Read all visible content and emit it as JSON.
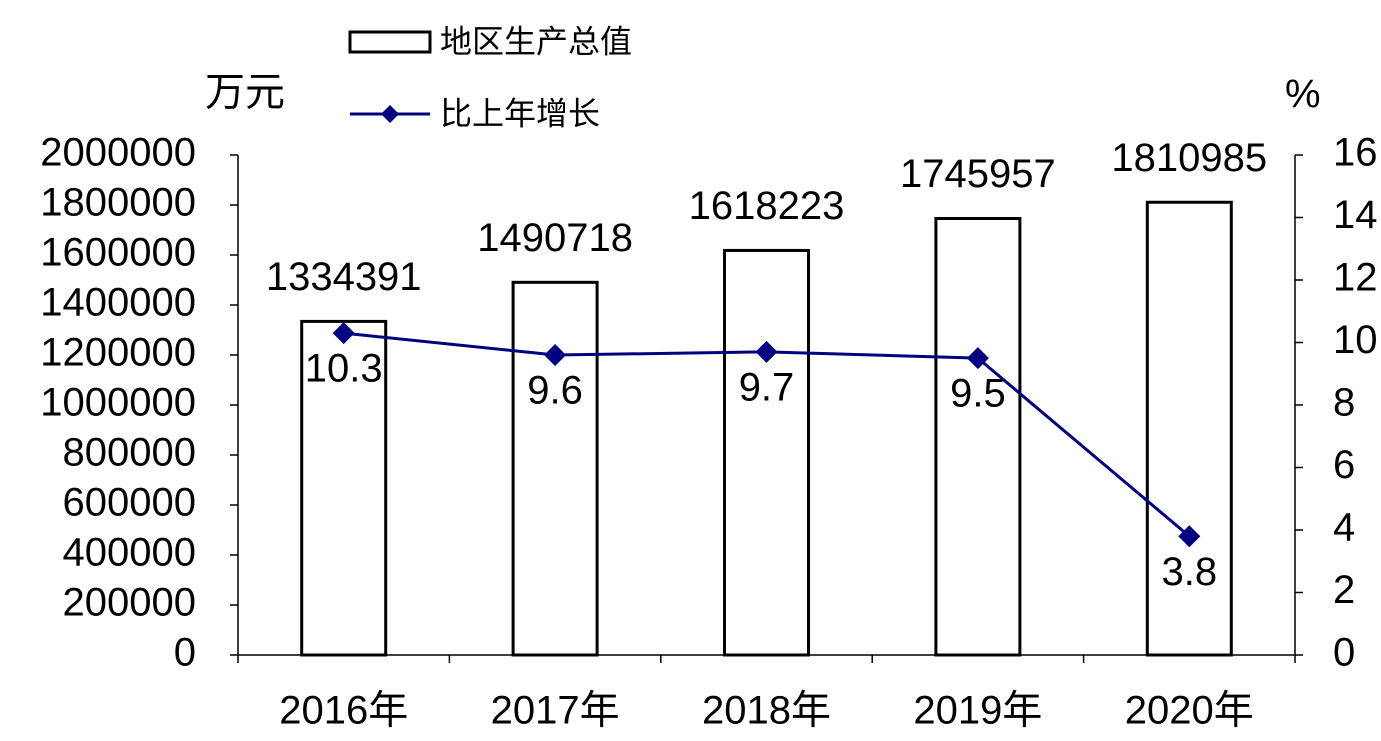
{
  "chart_data": {
    "type": "bar",
    "y_label": "万元",
    "y2_label": "%",
    "categories": [
      "2016年",
      "2017年",
      "2018年",
      "2019年",
      "2020年"
    ],
    "series": [
      {
        "name": "地区生产总值",
        "type": "bar",
        "color": "#ffffff",
        "values": [
          1334391,
          1490718,
          1618223,
          1745957,
          1810985
        ]
      },
      {
        "name": "比上年增长",
        "type": "line",
        "axis": "y2",
        "color": "#000080",
        "values": [
          10.3,
          9.6,
          9.7,
          9.5,
          3.8
        ]
      }
    ],
    "ylim": [
      0,
      2000000
    ],
    "yticks": [
      0,
      200000,
      400000,
      600000,
      800000,
      1000000,
      1200000,
      1400000,
      1600000,
      1800000,
      2000000
    ],
    "y2lim": [
      0,
      16
    ],
    "y2ticks": [
      0,
      2,
      4,
      6,
      8,
      10,
      12,
      14,
      16
    ]
  }
}
